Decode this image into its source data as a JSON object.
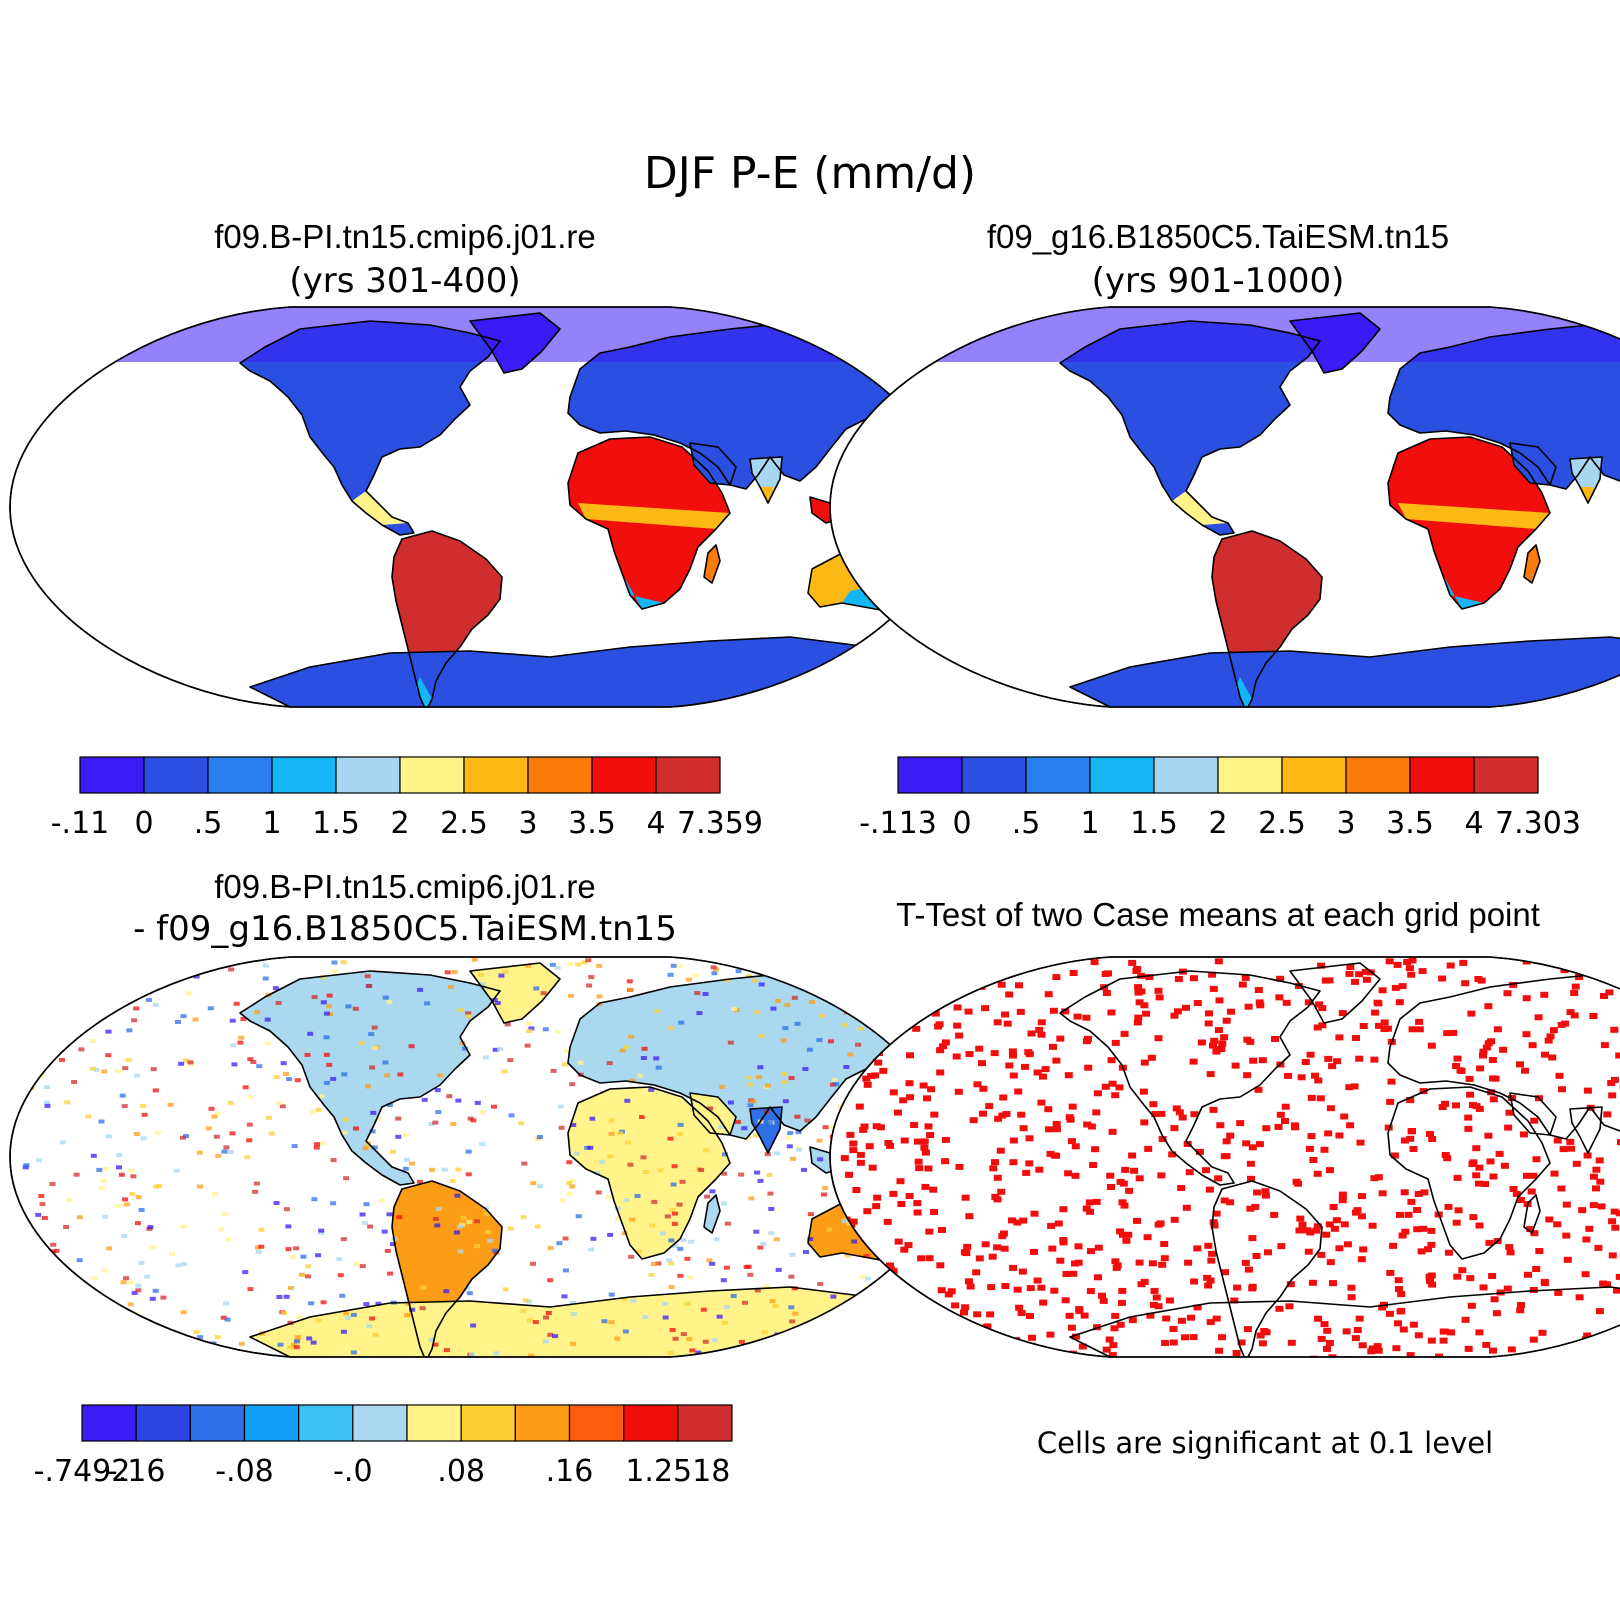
{
  "figure": {
    "main_title": "DJF P-E (mm/d)"
  },
  "panels": [
    {
      "id": "case1",
      "title_line1": "f09.B-PI.tn15.cmip6.j01.re",
      "title_line2": "(yrs 301-400)",
      "type": "mean"
    },
    {
      "id": "case2",
      "title_line1": "f09_g16.B1850C5.TaiESM.tn15",
      "title_line2": "(yrs 901-1000)",
      "type": "mean"
    },
    {
      "id": "diff",
      "title_line1": "f09.B-PI.tn15.cmip6.j01.re",
      "title_line2": "- f09_g16.B1850C5.TaiESM.tn15",
      "type": "difference"
    },
    {
      "id": "ttest",
      "title_line1": "T-Test of two Case means at each grid point",
      "title_line2": "",
      "footnote": "Cells are significant at 0.1 level",
      "type": "significance"
    }
  ],
  "colorbars": [
    {
      "panel": "case1",
      "colors": [
        "#3b1cf5",
        "#2b4fe0",
        "#2a7ff0",
        "#14b6f6",
        "#a7d6f0",
        "#fff38a",
        "#fcb916",
        "#fb7b0c",
        "#f30e0e",
        "#d02d2f"
      ],
      "labels": [
        "-.11",
        "0",
        ".5",
        "1",
        "1.5",
        "2",
        "2.5",
        "3",
        "3.5",
        "4",
        "7.359"
      ]
    },
    {
      "panel": "case2",
      "colors": [
        "#3b1cf5",
        "#2b4fe0",
        "#2a7ff0",
        "#14b6f6",
        "#a7d6f0",
        "#fff38a",
        "#fcb916",
        "#fb7b0c",
        "#f30e0e",
        "#d02d2f"
      ],
      "labels": [
        "-.113",
        "0",
        ".5",
        "1",
        "1.5",
        "2",
        "2.5",
        "3",
        "3.5",
        "4",
        "7.303"
      ]
    },
    {
      "panel": "diff",
      "colors": [
        "#3b1cf5",
        "#2d45e2",
        "#2f6fe8",
        "#129ff7",
        "#3ec0f2",
        "#a9d8ef",
        "#fff38a",
        "#fcd033",
        "#fd9d15",
        "#fc5c0f",
        "#f20d0d",
        "#d02d2f"
      ],
      "labels": [
        "-.7492",
        "-.16",
        "",
        "-.08",
        "",
        "-.0",
        "",
        ".08",
        "",
        ".16",
        "",
        "1.2518"
      ]
    }
  ],
  "map_colors": {
    "case_palette": [
      "#3b1cf5",
      "#2b4fe0",
      "#2a7ff0",
      "#14b6f6",
      "#a7d6f0",
      "#fff38a",
      "#fcb916",
      "#fb7b0c",
      "#f30e0e",
      "#d02d2f"
    ],
    "diff_palette": [
      "#3b1cf5",
      "#2f6fe8",
      "#a9d8ef",
      "#fff38a",
      "#fcd033",
      "#fd9d15",
      "#f20d0d",
      "#d02d2f"
    ],
    "significant": "#f20d0d"
  }
}
